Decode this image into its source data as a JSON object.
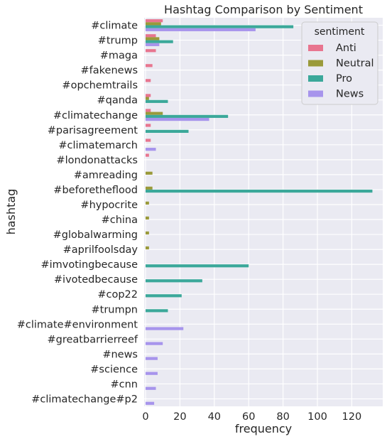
{
  "chart_data": {
    "type": "bar",
    "orientation": "horizontal",
    "title": "Hashtag Comparison by Sentiment",
    "xlabel": "frequency",
    "ylabel": "hashtag",
    "xlim": [
      0,
      134
    ],
    "xticks": [
      0,
      20,
      40,
      60,
      80,
      100,
      120
    ],
    "grid": true,
    "legend_title": "sentiment",
    "legend_position": "top-right",
    "categories": [
      "#climate",
      "#trump",
      "#maga",
      "#fakenews",
      "#opchemtrails",
      "#qanda",
      "#climatechange",
      "#parisagreement",
      "#climatemarch",
      "#londonattacks",
      "#amreading",
      "#beforetheflood",
      "#hypocrite",
      "#china",
      "#globalwarming",
      "#aprilfoolsday",
      "#imvotingbecause",
      "#ivotedbecause",
      "#cop22",
      "#trumpn",
      "#climate#environment",
      "#greatbarrierreef",
      "#news",
      "#science",
      "#cnn",
      "#climatechange#p2"
    ],
    "series": [
      {
        "name": "Anti",
        "color": "#e8758f",
        "values": [
          10,
          6,
          6,
          4,
          3,
          3,
          3,
          3,
          3,
          2,
          0,
          0,
          0,
          0,
          0,
          0,
          0,
          0,
          0,
          0,
          0,
          0,
          0,
          0,
          0,
          0
        ]
      },
      {
        "name": "Neutral",
        "color": "#9a9a3a",
        "values": [
          9,
          8,
          0,
          0,
          0,
          2,
          10,
          0,
          0,
          0,
          4,
          4,
          2,
          2,
          2,
          2,
          0,
          0,
          0,
          0,
          0,
          0,
          0,
          0,
          0,
          0
        ]
      },
      {
        "name": "Pro",
        "color": "#3ba89a",
        "values": [
          86,
          16,
          0,
          0,
          0,
          13,
          48,
          25,
          0,
          0,
          0,
          132,
          0,
          0,
          0,
          0,
          60,
          33,
          21,
          13,
          0,
          0,
          0,
          0,
          0,
          0
        ]
      },
      {
        "name": "News",
        "color": "#a794ec",
        "values": [
          64,
          8,
          0,
          0,
          0,
          0,
          37,
          0,
          6,
          0,
          0,
          0,
          0,
          0,
          0,
          0,
          0,
          0,
          0,
          0,
          22,
          10,
          7,
          7,
          6,
          5
        ]
      }
    ]
  }
}
